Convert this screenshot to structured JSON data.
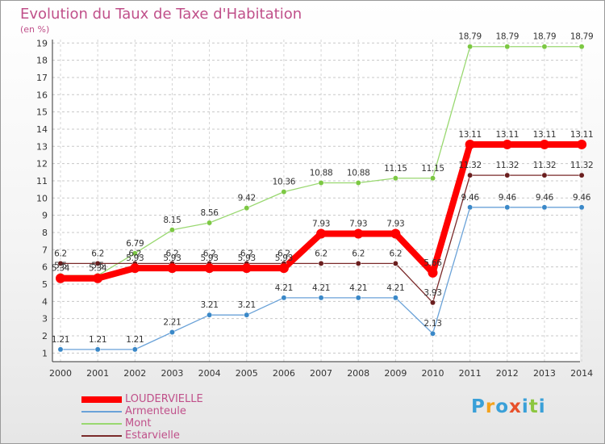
{
  "title": "Evolution du Taux de Taxe d'Habitation",
  "subtitle": "(en %)",
  "brand": {
    "letters": [
      "P",
      "r",
      "o",
      "x",
      "i",
      "t",
      "i"
    ],
    "colors": [
      "#3aa0d8",
      "#f4a21c",
      "#3aa0d8",
      "#e8502a",
      "#3aa0d8",
      "#8cc63f",
      "#3aa0d8"
    ]
  },
  "chart_data": {
    "type": "line",
    "x": [
      "2000",
      "2001",
      "2002",
      "2003",
      "2004",
      "2005",
      "2006",
      "2007",
      "2008",
      "2009",
      "2010",
      "2011",
      "2012",
      "2013",
      "2014"
    ],
    "ylim": [
      0.5,
      19.2
    ],
    "yticks": [
      1,
      2,
      3,
      4,
      5,
      6,
      7,
      8,
      9,
      10,
      11,
      12,
      13,
      14,
      15,
      16,
      17,
      18,
      19
    ],
    "grid": true,
    "series": [
      {
        "name": "LOUDERVIELLE",
        "color": "#ff0000",
        "dot": "#ff0000",
        "width": 8,
        "dotR": 6,
        "values": [
          5.34,
          5.34,
          5.93,
          5.93,
          5.93,
          5.93,
          5.93,
          7.93,
          7.93,
          7.93,
          5.66,
          13.11,
          13.11,
          13.11,
          13.11
        ],
        "labels": [
          "5.34",
          "5.34",
          "5.93",
          "5.93",
          "5.93",
          "5.93",
          "5.93",
          "7.93",
          "7.93",
          "7.93",
          "5.66",
          "13.11",
          "13.11",
          "13.11",
          "13.11"
        ]
      },
      {
        "name": "Armenteule",
        "color": "#6aa2d8",
        "dot": "#3a88c8",
        "width": 1.3,
        "dotR": 3.2,
        "values": [
          1.21,
          1.21,
          1.21,
          2.21,
          3.21,
          3.21,
          4.21,
          4.21,
          4.21,
          4.21,
          2.13,
          9.46,
          9.46,
          9.46,
          9.46
        ],
        "labels": [
          "1.21",
          "1.21",
          "1.21",
          "2.21",
          "3.21",
          "3.21",
          "4.21",
          "4.21",
          "4.21",
          "4.21",
          "2.13",
          "9.46",
          "9.46",
          "9.46",
          "9.46"
        ]
      },
      {
        "name": "Mont",
        "color": "#99d870",
        "dot": "#7cc843",
        "width": 1.3,
        "dotR": 3.2,
        "values": [
          5.5,
          5.5,
          6.79,
          8.15,
          8.56,
          9.42,
          10.36,
          10.88,
          10.88,
          11.15,
          11.15,
          18.79,
          18.79,
          18.79,
          18.79
        ],
        "labels": [
          "5.5",
          "5.5",
          "6.79",
          "8.15",
          "8.56",
          "9.42",
          "10.36",
          "10.88",
          "10.88",
          "11.15",
          "11.15",
          "18.79",
          "18.79",
          "18.79",
          "18.79"
        ]
      },
      {
        "name": "Estarvielle",
        "color": "#7a2a2a",
        "dot": "#6a1e1e",
        "width": 1.3,
        "dotR": 3.2,
        "values": [
          6.2,
          6.2,
          6.2,
          6.2,
          6.2,
          6.2,
          6.2,
          6.2,
          6.2,
          6.2,
          3.93,
          11.32,
          11.32,
          11.32,
          11.32
        ],
        "labels": [
          "6.2",
          "6.2",
          "6.2",
          "6.2",
          "6.2",
          "6.2",
          "6.2",
          "6.2",
          "6.2",
          "6.2",
          "3.93",
          "11.32",
          "11.32",
          "11.32",
          "11.32"
        ]
      }
    ]
  }
}
